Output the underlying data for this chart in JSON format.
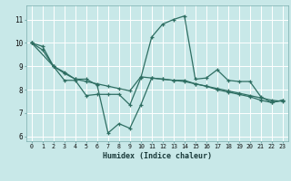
{
  "xlabel": "Humidex (Indice chaleur)",
  "bg_color": "#c8e8e8",
  "plot_bg_color": "#c8e8e8",
  "line_color": "#2e6e62",
  "grid_color": "#e8f8f8",
  "xlim": [
    -0.5,
    23.5
  ],
  "ylim": [
    5.8,
    11.6
  ],
  "xticks": [
    0,
    1,
    2,
    3,
    4,
    5,
    6,
    7,
    8,
    9,
    10,
    11,
    12,
    13,
    14,
    15,
    16,
    17,
    18,
    19,
    20,
    21,
    22,
    23
  ],
  "yticks": [
    6,
    7,
    8,
    9,
    10,
    11
  ],
  "line1_x": [
    0,
    1,
    2,
    3,
    4,
    5,
    6,
    7,
    8,
    9,
    10,
    11,
    12,
    13,
    14,
    15,
    16,
    17,
    18,
    19,
    20,
    21,
    22,
    23
  ],
  "line1_y": [
    10.0,
    9.85,
    9.0,
    8.4,
    8.4,
    7.75,
    7.8,
    7.8,
    7.8,
    7.35,
    8.5,
    10.25,
    10.8,
    11.0,
    11.15,
    8.45,
    8.5,
    8.85,
    8.4,
    8.35,
    8.35,
    7.7,
    7.45,
    7.55
  ],
  "line2_x": [
    0,
    2,
    3,
    4,
    5,
    6,
    7,
    8,
    9,
    10,
    11,
    12,
    13,
    14,
    15,
    16,
    17,
    18,
    19,
    20,
    21,
    22,
    23
  ],
  "line2_y": [
    10.0,
    9.0,
    8.75,
    8.45,
    8.45,
    8.2,
    6.15,
    6.55,
    6.35,
    7.35,
    8.5,
    8.45,
    8.4,
    8.4,
    8.25,
    8.15,
    8.0,
    7.9,
    7.8,
    7.7,
    7.55,
    7.45,
    7.55
  ],
  "line3_x": [
    0,
    1,
    2,
    3,
    4,
    5,
    6,
    7,
    8,
    9,
    10,
    11,
    12,
    13,
    14,
    15,
    16,
    17,
    18,
    19,
    20,
    21,
    22,
    23
  ],
  "line3_y": [
    10.0,
    9.7,
    9.0,
    8.7,
    8.45,
    8.35,
    8.25,
    8.15,
    8.05,
    7.95,
    8.55,
    8.5,
    8.45,
    8.4,
    8.35,
    8.25,
    8.15,
    8.05,
    7.95,
    7.85,
    7.75,
    7.65,
    7.55,
    7.5
  ]
}
